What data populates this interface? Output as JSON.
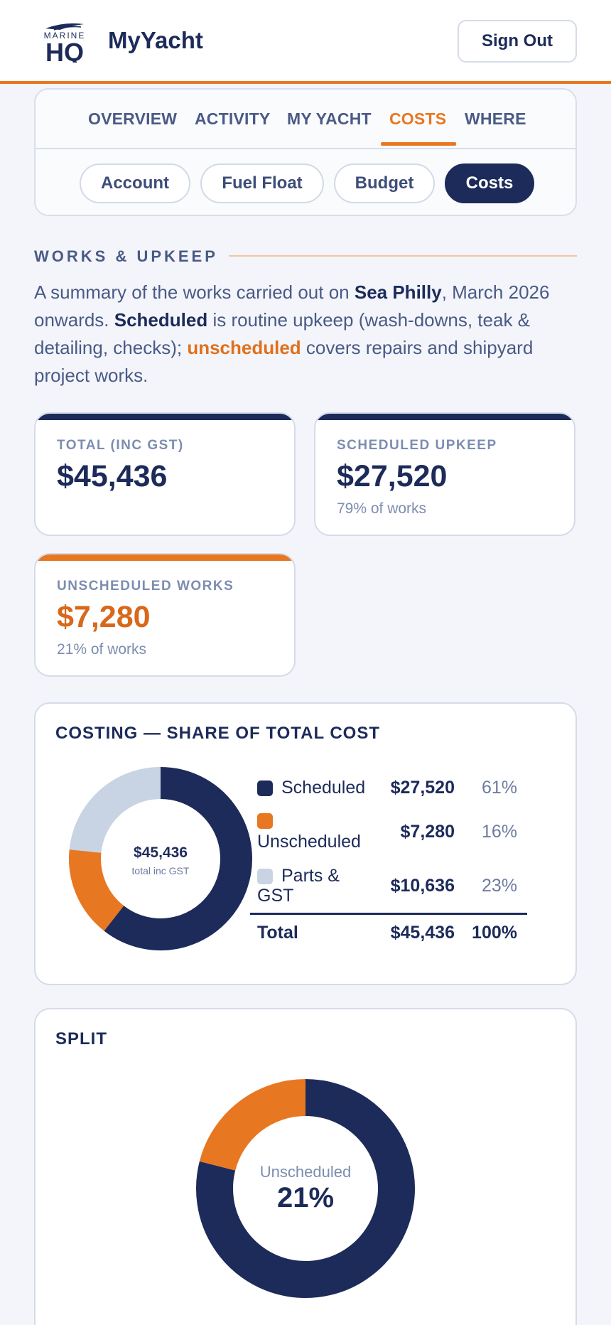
{
  "header": {
    "logo_text_top": "MARINE",
    "logo_text_main": "HQ",
    "app_title": "MyYacht",
    "signout_label": "Sign Out"
  },
  "nav": {
    "tabs": [
      {
        "label": "OVERVIEW",
        "active": false
      },
      {
        "label": "ACTIVITY",
        "active": false
      },
      {
        "label": "MY YACHT",
        "active": false
      },
      {
        "label": "COSTS",
        "active": true
      },
      {
        "label": "WHERE",
        "active": false
      }
    ],
    "subtabs": [
      {
        "label": "Account",
        "active": false
      },
      {
        "label": "Fuel Float",
        "active": false
      },
      {
        "label": "Budget",
        "active": false
      },
      {
        "label": "Costs",
        "active": true
      }
    ]
  },
  "section": {
    "heading": "WORKS & UPKEEP",
    "intro": {
      "p1": "A summary of the works carried out on ",
      "yacht": "Sea Philly",
      "p2": ", March 2026 onwards. ",
      "scheduled": "Scheduled",
      "p3": " is routine upkeep (wash-downs, teak & detailing, checks); ",
      "unscheduled": "unscheduled",
      "p4": " covers repairs and shipyard project works."
    }
  },
  "stats": {
    "total": {
      "label": "TOTAL (INC GST)",
      "value": "$45,436"
    },
    "scheduled": {
      "label": "SCHEDULED UPKEEP",
      "value": "$27,520",
      "sub": "79% of works"
    },
    "unscheduled": {
      "label": "UNSCHEDULED WORKS",
      "value": "$7,280",
      "sub": "21% of works"
    }
  },
  "colors": {
    "navy": "#1d2b5a",
    "orange": "#e87722",
    "grey": "#c8d3e4"
  },
  "costing": {
    "title": "COSTING — SHARE OF TOTAL COST",
    "center_value": "$45,436",
    "center_label": "total inc GST",
    "rows": [
      {
        "label": "Scheduled",
        "amount": "$27,520",
        "pct": "61%"
      },
      {
        "label": "Unscheduled",
        "amount": "$7,280",
        "pct": "16%"
      },
      {
        "label": "Parts & GST",
        "amount": "$10,636",
        "pct": "23%"
      }
    ],
    "total": {
      "label": "Total",
      "amount": "$45,436",
      "pct": "100%"
    }
  },
  "split": {
    "title": "SPLIT",
    "center_label": "Unscheduled",
    "center_value": "21%"
  },
  "chart_data": [
    {
      "type": "pie",
      "title": "COSTING — SHARE OF TOTAL COST",
      "categories": [
        "Scheduled",
        "Unscheduled",
        "Parts & GST"
      ],
      "values": [
        27520,
        7280,
        10636
      ],
      "percent": [
        61,
        16,
        23
      ],
      "colors": [
        "#1d2b5a",
        "#e87722",
        "#c8d3e4"
      ]
    },
    {
      "type": "pie",
      "title": "SPLIT",
      "categories": [
        "Scheduled",
        "Unscheduled"
      ],
      "values": [
        79,
        21
      ],
      "colors": [
        "#1d2b5a",
        "#e87722"
      ]
    }
  ]
}
